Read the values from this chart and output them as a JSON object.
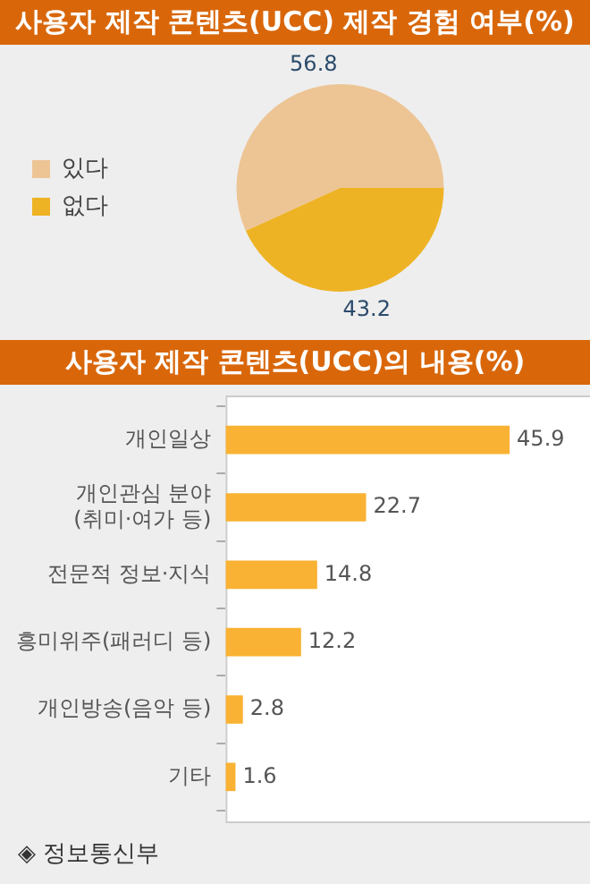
{
  "chart_data": [
    {
      "type": "pie",
      "title": "사용자 제작 콘텐츠(UCC) 제작 경험 여부(%)",
      "categories": [
        "있다",
        "없다"
      ],
      "values": [
        56.8,
        43.2
      ],
      "colors": [
        "#edc595",
        "#eeb325"
      ],
      "data_labels": true,
      "legend": "left"
    },
    {
      "type": "bar",
      "orientation": "horizontal",
      "title": "사용자 제작 콘텐츠(UCC)의 내용(%)",
      "categories": [
        "개인일상",
        "개인관심 분야\n(취미·여가 등)",
        "전문적 정보·지식",
        "흥미위주(패러디 등)",
        "개인방송(음악 등)",
        "기타"
      ],
      "values": [
        45.9,
        22.7,
        14.8,
        12.2,
        2.8,
        1.6
      ],
      "color": "#f9b233",
      "data_labels": true,
      "annotations": [
        "◈ 정보통신부"
      ]
    }
  ]
}
